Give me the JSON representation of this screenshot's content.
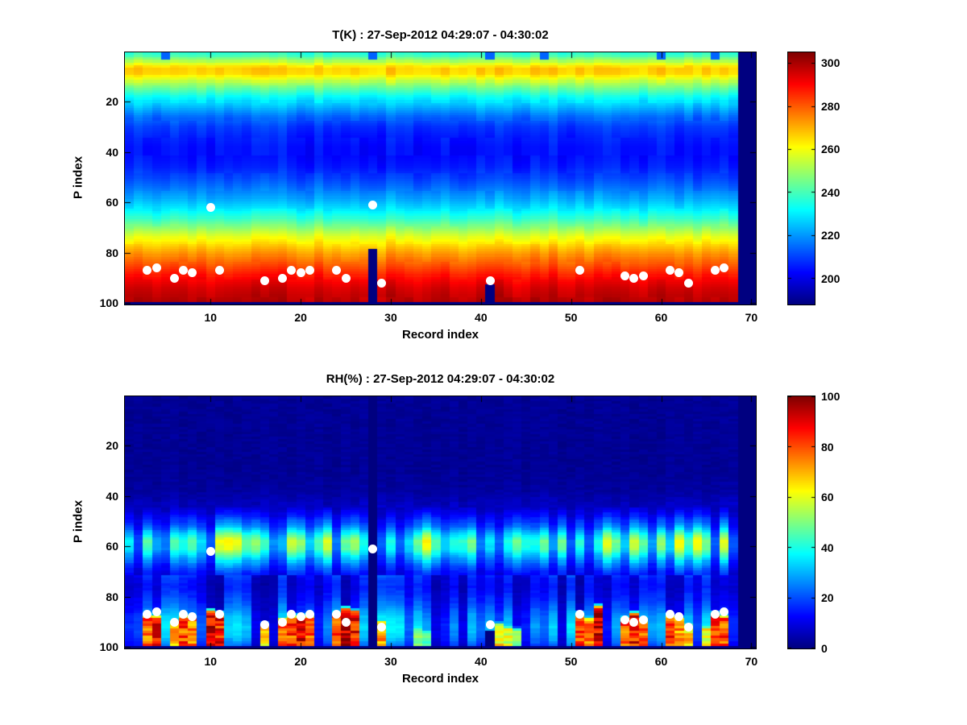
{
  "figure": {
    "background": "#ffffff"
  },
  "chart_data": [
    {
      "type": "heatmap",
      "title": "T(K) : 27-Sep-2012 04:29:07 - 04:30:02",
      "xlabel": "Record index",
      "ylabel": "P index",
      "x_ticks": [
        10,
        20,
        30,
        40,
        50,
        60,
        70
      ],
      "y_ticks": [
        20,
        40,
        60,
        80,
        100
      ],
      "n_records": 70,
      "n_levels": 100,
      "y_axis_reversed": true,
      "colormap": "jet",
      "color_range": [
        188,
        305
      ],
      "colorbar_ticks": [
        200,
        220,
        240,
        260,
        280,
        300
      ],
      "profile_p_value": [
        [
          1,
          237
        ],
        [
          2,
          240
        ],
        [
          4,
          252
        ],
        [
          6,
          264
        ],
        [
          7,
          267
        ],
        [
          9,
          266
        ],
        [
          11,
          258
        ],
        [
          14,
          246
        ],
        [
          18,
          233
        ],
        [
          22,
          224
        ],
        [
          26,
          215
        ],
        [
          30,
          209
        ],
        [
          34,
          206
        ],
        [
          38,
          204
        ],
        [
          42,
          204
        ],
        [
          46,
          206
        ],
        [
          50,
          210
        ],
        [
          54,
          215
        ],
        [
          58,
          221
        ],
        [
          62,
          228
        ],
        [
          66,
          237
        ],
        [
          70,
          248
        ],
        [
          74,
          259
        ],
        [
          78,
          268
        ],
        [
          82,
          276
        ],
        [
          86,
          283
        ],
        [
          90,
          290
        ],
        [
          94,
          295
        ],
        [
          98,
          298
        ],
        [
          100,
          299
        ]
      ],
      "column_variation": 5,
      "cold_top_columns": [
        5,
        28,
        41,
        47,
        60,
        66
      ],
      "missing_columns": [
        69,
        70
      ],
      "missing_bottom_row": true,
      "missing_cells": [
        {
          "record": 28,
          "from_p": 79
        },
        {
          "record": 41,
          "from_p": 93
        }
      ],
      "dots": [
        [
          3,
          87
        ],
        [
          4,
          86
        ],
        [
          6,
          90
        ],
        [
          7,
          87
        ],
        [
          8,
          88
        ],
        [
          10,
          62
        ],
        [
          11,
          87
        ],
        [
          16,
          91
        ],
        [
          18,
          90
        ],
        [
          19,
          87
        ],
        [
          20,
          88
        ],
        [
          21,
          87
        ],
        [
          24,
          87
        ],
        [
          25,
          90
        ],
        [
          28,
          61
        ],
        [
          29,
          92
        ],
        [
          41,
          91
        ],
        [
          51,
          87
        ],
        [
          56,
          89
        ],
        [
          57,
          90
        ],
        [
          58,
          89
        ],
        [
          61,
          87
        ],
        [
          62,
          88
        ],
        [
          63,
          92
        ],
        [
          66,
          87
        ],
        [
          67,
          86
        ]
      ]
    },
    {
      "type": "heatmap",
      "title": "RH(%) : 27-Sep-2012 04:29:07 - 04:30:02",
      "xlabel": "Record index",
      "ylabel": "P index",
      "x_ticks": [
        10,
        20,
        30,
        40,
        50,
        60,
        70
      ],
      "y_ticks": [
        20,
        40,
        60,
        80,
        100
      ],
      "n_records": 70,
      "n_levels": 100,
      "y_axis_reversed": true,
      "colormap": "jet",
      "color_range": [
        0,
        100
      ],
      "colorbar_ticks": [
        0,
        20,
        40,
        60,
        80,
        100
      ],
      "profile_p_value": [
        [
          1,
          2
        ],
        [
          30,
          2
        ],
        [
          38,
          3
        ],
        [
          44,
          6
        ],
        [
          48,
          12
        ],
        [
          52,
          20
        ],
        [
          55,
          30
        ],
        [
          58,
          38
        ],
        [
          61,
          36
        ],
        [
          64,
          28
        ],
        [
          67,
          20
        ],
        [
          70,
          14
        ],
        [
          73,
          10
        ],
        [
          76,
          9
        ],
        [
          80,
          11
        ],
        [
          84,
          14
        ],
        [
          88,
          18
        ],
        [
          92,
          20
        ],
        [
          96,
          18
        ],
        [
          99,
          14
        ]
      ],
      "band": {
        "from_p": 45,
        "to_p": 71
      },
      "spikes": [
        [
          3,
          87,
          82
        ],
        [
          4,
          87,
          90
        ],
        [
          6,
          89,
          72
        ],
        [
          7,
          87,
          85
        ],
        [
          8,
          87,
          78
        ],
        [
          10,
          85,
          96
        ],
        [
          11,
          86,
          90
        ],
        [
          16,
          90,
          68
        ],
        [
          18,
          88,
          80
        ],
        [
          19,
          87,
          85
        ],
        [
          20,
          87,
          92
        ],
        [
          21,
          87,
          85
        ],
        [
          24,
          86,
          88
        ],
        [
          25,
          84,
          95
        ],
        [
          26,
          85,
          92
        ],
        [
          29,
          89,
          75
        ],
        [
          33,
          92,
          55
        ],
        [
          34,
          93,
          50
        ],
        [
          42,
          90,
          68
        ],
        [
          43,
          91,
          62
        ],
        [
          44,
          92,
          55
        ],
        [
          51,
          86,
          85
        ],
        [
          52,
          88,
          78
        ],
        [
          53,
          83,
          96
        ],
        [
          56,
          88,
          85
        ],
        [
          57,
          86,
          92
        ],
        [
          58,
          88,
          82
        ],
        [
          61,
          87,
          86
        ],
        [
          62,
          88,
          78
        ],
        [
          63,
          90,
          70
        ],
        [
          65,
          91,
          65
        ],
        [
          66,
          86,
          90
        ],
        [
          67,
          87,
          85
        ]
      ],
      "missing_columns": [
        69,
        70
      ],
      "missing_bottom_row": true,
      "missing_cells": [
        {
          "record": 28,
          "from_p": 1
        },
        {
          "record": 41,
          "from_p": 94
        }
      ],
      "dots": [
        [
          3,
          87
        ],
        [
          4,
          86
        ],
        [
          6,
          90
        ],
        [
          7,
          87
        ],
        [
          8,
          88
        ],
        [
          10,
          62
        ],
        [
          11,
          87
        ],
        [
          16,
          91
        ],
        [
          18,
          90
        ],
        [
          19,
          87
        ],
        [
          20,
          88
        ],
        [
          21,
          87
        ],
        [
          24,
          87
        ],
        [
          25,
          90
        ],
        [
          28,
          61
        ],
        [
          29,
          92
        ],
        [
          41,
          91
        ],
        [
          51,
          87
        ],
        [
          56,
          89
        ],
        [
          57,
          90
        ],
        [
          58,
          89
        ],
        [
          61,
          87
        ],
        [
          62,
          88
        ],
        [
          63,
          92
        ],
        [
          66,
          87
        ],
        [
          67,
          86
        ]
      ]
    }
  ]
}
